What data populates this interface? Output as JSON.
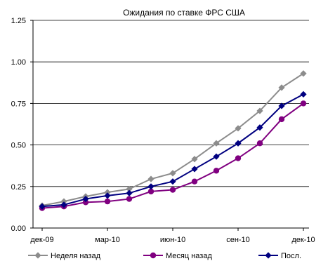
{
  "chart_data": {
    "type": "line",
    "title": "Ожидания по ставке ФРС США",
    "xlabel": "",
    "ylabel": "",
    "x_labels": [
      "дек-09",
      "мар-10",
      "июн-10",
      "сен-10",
      "дек-10"
    ],
    "x_label_index": [
      0,
      3,
      6,
      9,
      12
    ],
    "y_ticks": [
      "0.00",
      "0.25",
      "0.50",
      "0.75",
      "1.00",
      "1.25"
    ],
    "ylim": [
      0,
      1.25
    ],
    "grid": "horizontal",
    "legend_position": "bottom",
    "series": [
      {
        "name": "Неделя назад",
        "color": "#8c8c8c",
        "marker": "diamond",
        "values": [
          0.135,
          0.16,
          0.19,
          0.215,
          0.235,
          0.295,
          0.33,
          0.415,
          0.51,
          0.6,
          0.705,
          0.845,
          0.93
        ]
      },
      {
        "name": "Месяц назад",
        "color": "#800080",
        "marker": "circle",
        "values": [
          0.12,
          0.13,
          0.155,
          0.16,
          0.175,
          0.22,
          0.23,
          0.28,
          0.345,
          0.42,
          0.51,
          0.655,
          0.75
        ]
      },
      {
        "name": "Посл.",
        "color": "#000080",
        "marker": "diamond",
        "values": [
          0.13,
          0.14,
          0.175,
          0.195,
          0.21,
          0.25,
          0.28,
          0.355,
          0.43,
          0.51,
          0.605,
          0.735,
          0.805
        ]
      }
    ]
  }
}
